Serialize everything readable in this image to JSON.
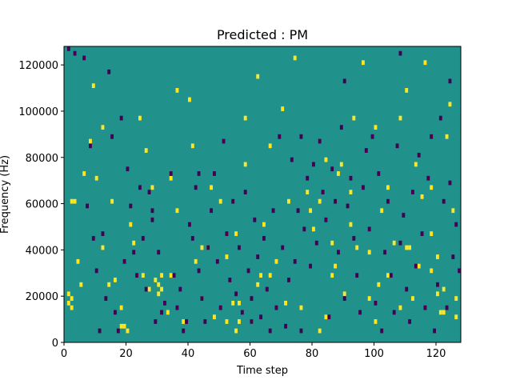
{
  "chart_data": {
    "type": "heatmap",
    "title": "Predicted : PM",
    "xlabel": "Time step",
    "ylabel": "Frequency (Hz)",
    "xlim": [
      0,
      128
    ],
    "ylim": [
      0,
      128000
    ],
    "x_ticks": [
      0,
      20,
      40,
      60,
      80,
      100,
      120
    ],
    "y_ticks": [
      0,
      20000,
      40000,
      60000,
      80000,
      100000,
      120000
    ],
    "x_tick_labels": [
      "0",
      "20",
      "40",
      "60",
      "80",
      "100",
      "120"
    ],
    "y_tick_labels": [
      "0",
      "20000",
      "40000",
      "60000",
      "80000",
      "100000",
      "120000"
    ],
    "n_time_steps": 128,
    "n_freq_bins": 64,
    "bin_width_hz": 2000,
    "colormap": {
      "low": "#440154",
      "mid": "#21918c",
      "high": "#fde725"
    },
    "background_value": 0,
    "high_cells": [
      [
        2,
        60000
      ],
      [
        3,
        60000
      ],
      [
        1,
        20000
      ],
      [
        1,
        16000
      ],
      [
        2,
        18000
      ],
      [
        2,
        14000
      ],
      [
        4,
        34000
      ],
      [
        6,
        72000
      ],
      [
        8,
        86000
      ],
      [
        10,
        70000
      ],
      [
        12,
        40000
      ],
      [
        14,
        24000
      ],
      [
        15,
        60000
      ],
      [
        18,
        6000
      ],
      [
        19,
        6000
      ],
      [
        20,
        4000
      ],
      [
        21,
        50000
      ],
      [
        22,
        42000
      ],
      [
        25,
        28000
      ],
      [
        27,
        22000
      ],
      [
        29,
        26000
      ],
      [
        30,
        24000
      ],
      [
        31,
        22000
      ],
      [
        30,
        20000
      ],
      [
        31,
        28000
      ],
      [
        33,
        12000
      ],
      [
        34,
        70000
      ],
      [
        36,
        56000
      ],
      [
        40,
        104000
      ],
      [
        41,
        84000
      ],
      [
        42,
        34000
      ],
      [
        44,
        18000
      ],
      [
        46,
        40000
      ],
      [
        48,
        10000
      ],
      [
        50,
        60000
      ],
      [
        52,
        36000
      ],
      [
        54,
        16000
      ],
      [
        55,
        4000
      ],
      [
        56,
        8000
      ],
      [
        58,
        76000
      ],
      [
        60,
        8000
      ],
      [
        62,
        24000
      ],
      [
        64,
        50000
      ],
      [
        66,
        84000
      ],
      [
        68,
        34000
      ],
      [
        72,
        60000
      ],
      [
        76,
        14000
      ],
      [
        80,
        48000
      ],
      [
        82,
        60000
      ],
      [
        84,
        10000
      ],
      [
        86,
        28000
      ],
      [
        88,
        72000
      ],
      [
        89,
        76000
      ],
      [
        90,
        20000
      ],
      [
        92,
        64000
      ],
      [
        94,
        40000
      ],
      [
        96,
        120000
      ],
      [
        98,
        18000
      ],
      [
        100,
        8000
      ],
      [
        102,
        56000
      ],
      [
        104,
        28000
      ],
      [
        106,
        42000
      ],
      [
        108,
        14000
      ],
      [
        110,
        40000
      ],
      [
        111,
        40000
      ],
      [
        112,
        18000
      ],
      [
        114,
        32000
      ],
      [
        115,
        62000
      ],
      [
        116,
        120000
      ],
      [
        118,
        66000
      ],
      [
        120,
        20000
      ],
      [
        121,
        12000
      ],
      [
        122,
        12000
      ],
      [
        122,
        22000
      ],
      [
        124,
        102000
      ],
      [
        126,
        10000
      ],
      [
        12,
        92000
      ],
      [
        16,
        26000
      ],
      [
        24,
        96000
      ],
      [
        38,
        8000
      ],
      [
        44,
        40000
      ],
      [
        52,
        8000
      ],
      [
        56,
        16000
      ],
      [
        58,
        96000
      ],
      [
        66,
        28000
      ],
      [
        70,
        100000
      ],
      [
        74,
        122000
      ],
      [
        78,
        64000
      ],
      [
        84,
        78000
      ],
      [
        86,
        42000
      ],
      [
        92,
        50000
      ],
      [
        98,
        38000
      ],
      [
        104,
        66000
      ],
      [
        108,
        96000
      ],
      [
        110,
        108000
      ],
      [
        118,
        30000
      ],
      [
        120,
        36000
      ],
      [
        123,
        88000
      ],
      [
        126,
        18000
      ],
      [
        5,
        24000
      ],
      [
        9,
        110000
      ],
      [
        18,
        14000
      ],
      [
        26,
        82000
      ],
      [
        34,
        28000
      ],
      [
        47,
        66000
      ],
      [
        55,
        46000
      ],
      [
        63,
        28000
      ],
      [
        71,
        16000
      ],
      [
        79,
        56000
      ],
      [
        87,
        32000
      ],
      [
        93,
        96000
      ],
      [
        101,
        24000
      ],
      [
        113,
        76000
      ],
      [
        125,
        56000
      ],
      [
        36,
        108000
      ],
      [
        62,
        114000
      ],
      [
        82,
        4000
      ],
      [
        100,
        92000
      ],
      [
        118,
        46000
      ],
      [
        28,
        66000
      ]
    ],
    "low_cells": [
      [
        1,
        126000
      ],
      [
        3,
        124000
      ],
      [
        6,
        122000
      ],
      [
        8,
        84000
      ],
      [
        9,
        44000
      ],
      [
        10,
        30000
      ],
      [
        11,
        4000
      ],
      [
        12,
        46000
      ],
      [
        13,
        18000
      ],
      [
        15,
        88000
      ],
      [
        16,
        12000
      ],
      [
        17,
        4000
      ],
      [
        18,
        96000
      ],
      [
        19,
        34000
      ],
      [
        20,
        74000
      ],
      [
        21,
        58000
      ],
      [
        22,
        38000
      ],
      [
        23,
        28000
      ],
      [
        24,
        66000
      ],
      [
        25,
        44000
      ],
      [
        26,
        22000
      ],
      [
        27,
        64000
      ],
      [
        28,
        56000
      ],
      [
        29,
        8000
      ],
      [
        30,
        38000
      ],
      [
        31,
        12000
      ],
      [
        32,
        16000
      ],
      [
        34,
        72000
      ],
      [
        35,
        28000
      ],
      [
        36,
        14000
      ],
      [
        37,
        22000
      ],
      [
        38,
        4000
      ],
      [
        39,
        8000
      ],
      [
        40,
        50000
      ],
      [
        41,
        44000
      ],
      [
        42,
        66000
      ],
      [
        43,
        30000
      ],
      [
        44,
        18000
      ],
      [
        45,
        8000
      ],
      [
        46,
        40000
      ],
      [
        47,
        56000
      ],
      [
        48,
        72000
      ],
      [
        49,
        34000
      ],
      [
        50,
        14000
      ],
      [
        51,
        86000
      ],
      [
        52,
        46000
      ],
      [
        53,
        26000
      ],
      [
        54,
        60000
      ],
      [
        55,
        20000
      ],
      [
        56,
        40000
      ],
      [
        57,
        12000
      ],
      [
        58,
        64000
      ],
      [
        59,
        30000
      ],
      [
        60,
        18000
      ],
      [
        61,
        52000
      ],
      [
        62,
        36000
      ],
      [
        63,
        10000
      ],
      [
        64,
        44000
      ],
      [
        65,
        22000
      ],
      [
        66,
        4000
      ],
      [
        67,
        56000
      ],
      [
        68,
        14000
      ],
      [
        69,
        88000
      ],
      [
        70,
        40000
      ],
      [
        71,
        6000
      ],
      [
        72,
        26000
      ],
      [
        73,
        78000
      ],
      [
        74,
        34000
      ],
      [
        75,
        56000
      ],
      [
        76,
        4000
      ],
      [
        77,
        48000
      ],
      [
        78,
        70000
      ],
      [
        79,
        32000
      ],
      [
        80,
        76000
      ],
      [
        81,
        42000
      ],
      [
        82,
        86000
      ],
      [
        83,
        64000
      ],
      [
        84,
        52000
      ],
      [
        85,
        10000
      ],
      [
        86,
        74000
      ],
      [
        87,
        60000
      ],
      [
        88,
        38000
      ],
      [
        89,
        92000
      ],
      [
        90,
        18000
      ],
      [
        91,
        58000
      ],
      [
        92,
        70000
      ],
      [
        93,
        44000
      ],
      [
        94,
        28000
      ],
      [
        95,
        12000
      ],
      [
        96,
        66000
      ],
      [
        97,
        82000
      ],
      [
        98,
        48000
      ],
      [
        99,
        88000
      ],
      [
        100,
        16000
      ],
      [
        101,
        72000
      ],
      [
        102,
        4000
      ],
      [
        103,
        38000
      ],
      [
        104,
        60000
      ],
      [
        105,
        28000
      ],
      [
        106,
        12000
      ],
      [
        107,
        84000
      ],
      [
        108,
        42000
      ],
      [
        109,
        54000
      ],
      [
        110,
        22000
      ],
      [
        111,
        8000
      ],
      [
        112,
        64000
      ],
      [
        113,
        32000
      ],
      [
        114,
        80000
      ],
      [
        115,
        46000
      ],
      [
        116,
        14000
      ],
      [
        117,
        70000
      ],
      [
        118,
        88000
      ],
      [
        119,
        4000
      ],
      [
        120,
        24000
      ],
      [
        121,
        96000
      ],
      [
        122,
        60000
      ],
      [
        123,
        14000
      ],
      [
        124,
        68000
      ],
      [
        125,
        36000
      ],
      [
        126,
        50000
      ],
      [
        127,
        30000
      ],
      [
        7,
        58000
      ],
      [
        14,
        116000
      ],
      [
        28,
        52000
      ],
      [
        43,
        72000
      ],
      [
        60,
        8000
      ],
      [
        76,
        88000
      ],
      [
        90,
        112000
      ],
      [
        108,
        124000
      ],
      [
        124,
        112000
      ]
    ]
  }
}
